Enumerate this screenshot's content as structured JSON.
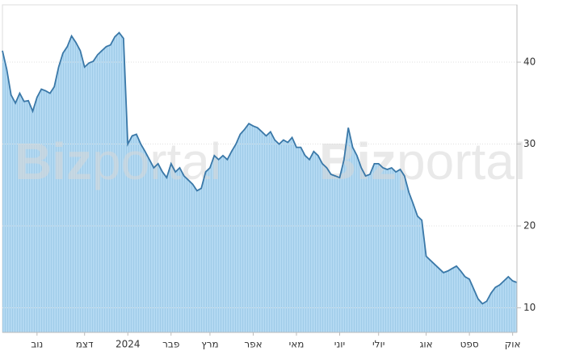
{
  "chart_data": {
    "type": "area",
    "watermark": [
      "Biz",
      "portal"
    ],
    "series": [
      {
        "color": "#3a78a8",
        "fill": "#aed6f1",
        "values": [
          41.4,
          39.1,
          36,
          35,
          36.2,
          35.2,
          35.3,
          34,
          35.7,
          36.7,
          36.5,
          36.2,
          37,
          39.4,
          41.1,
          41.9,
          43.2,
          42.4,
          41.4,
          39.4,
          39.9,
          40.1,
          40.9,
          41.4,
          41.9,
          42.1,
          43.1,
          43.6,
          42.9,
          30,
          31,
          31.2,
          30,
          29.1,
          28.1,
          27.1,
          27.6,
          26.6,
          25.9,
          27.6,
          26.6,
          27.1,
          26.1,
          25.6,
          25.1,
          24.3,
          24.6,
          26.6,
          27.1,
          28.6,
          28.1,
          28.6,
          28.1,
          29.1,
          30,
          31.2,
          31.8,
          32.5,
          32.2,
          32,
          31.5,
          31,
          31.5,
          30.5,
          30,
          30.5,
          30.2,
          30.8,
          29.6,
          29.6,
          28.6,
          28.1,
          29.1,
          28.6,
          27.6,
          27.1,
          26.3,
          26.1,
          25.9,
          28.1,
          32,
          29.6,
          28.6,
          27.1,
          26.1,
          26.3,
          27.6,
          27.6,
          27.1,
          26.9,
          27.1,
          26.6,
          26.9,
          26.1,
          24.1,
          22.7,
          21.2,
          20.7,
          16.3,
          15.8,
          15.3,
          14.8,
          14.3,
          14.5,
          14.8,
          15.1,
          14.5,
          13.8,
          13.5,
          12.3,
          11.1,
          10.5,
          10.8,
          11.8,
          12.5,
          12.8,
          13.3,
          13.8,
          13.3,
          13.1
        ]
      }
    ],
    "xticks": [
      {
        "value": 8,
        "label": "נוב"
      },
      {
        "value": 19,
        "label": "דצמ"
      },
      {
        "value": 29,
        "label": "2024"
      },
      {
        "value": 39,
        "label": "פבר"
      },
      {
        "value": 48,
        "label": "מרץ"
      },
      {
        "value": 58,
        "label": "אפר"
      },
      {
        "value": 68,
        "label": "מאי"
      },
      {
        "value": 78,
        "label": "יוני"
      },
      {
        "value": 87,
        "label": "יולי"
      },
      {
        "value": 98,
        "label": "אוג"
      },
      {
        "value": 108,
        "label": "ספט"
      },
      {
        "value": 118,
        "label": "אוק"
      }
    ],
    "ylim": [
      7,
      47
    ],
    "yticks": [
      10,
      20,
      30,
      40
    ],
    "grid": true
  }
}
